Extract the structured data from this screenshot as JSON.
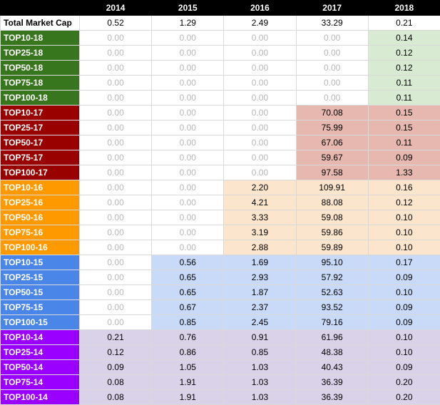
{
  "header": {
    "corner": "",
    "years": [
      "2014",
      "2015",
      "2016",
      "2017",
      "2018"
    ]
  },
  "colors": {
    "group_18": "#38761d",
    "fill_18": "#d9ead3",
    "group_17": "#990000",
    "fill_17": "#e6b8af",
    "group_16": "#ff9900",
    "fill_16": "#fce5cd",
    "group_15": "#4a86e8",
    "fill_15": "#c9daf8",
    "group_14": "#9900ff",
    "fill_14": "#d9d2e9"
  },
  "rows": [
    {
      "label": "Total Market Cap",
      "group": "total",
      "values": [
        "0.52",
        "1.29",
        "2.49",
        "33.29",
        "0.21"
      ]
    },
    {
      "label": "TOP10-18",
      "group": "18",
      "values": [
        "0.00",
        "0.00",
        "0.00",
        "0.00",
        "0.14"
      ]
    },
    {
      "label": "TOP25-18",
      "group": "18",
      "values": [
        "0.00",
        "0.00",
        "0.00",
        "0.00",
        "0.12"
      ]
    },
    {
      "label": "TOP50-18",
      "group": "18",
      "values": [
        "0.00",
        "0.00",
        "0.00",
        "0.00",
        "0.12"
      ]
    },
    {
      "label": "TOP75-18",
      "group": "18",
      "values": [
        "0.00",
        "0.00",
        "0.00",
        "0.00",
        "0.11"
      ]
    },
    {
      "label": "TOP100-18",
      "group": "18",
      "values": [
        "0.00",
        "0.00",
        "0.00",
        "0.00",
        "0.11"
      ]
    },
    {
      "label": "TOP10-17",
      "group": "17",
      "values": [
        "0.00",
        "0.00",
        "0.00",
        "70.08",
        "0.15"
      ]
    },
    {
      "label": "TOP25-17",
      "group": "17",
      "values": [
        "0.00",
        "0.00",
        "0.00",
        "75.99",
        "0.15"
      ]
    },
    {
      "label": "TOP50-17",
      "group": "17",
      "values": [
        "0.00",
        "0.00",
        "0.00",
        "67.06",
        "0.11"
      ]
    },
    {
      "label": "TOP75-17",
      "group": "17",
      "values": [
        "0.00",
        "0.00",
        "0.00",
        "59.67",
        "0.09"
      ]
    },
    {
      "label": "TOP100-17",
      "group": "17",
      "values": [
        "0.00",
        "0.00",
        "0.00",
        "97.58",
        "1.33"
      ]
    },
    {
      "label": "TOP10-16",
      "group": "16",
      "values": [
        "0.00",
        "0.00",
        "2.20",
        "109.91",
        "0.16"
      ]
    },
    {
      "label": "TOP25-16",
      "group": "16",
      "values": [
        "0.00",
        "0.00",
        "4.21",
        "88.08",
        "0.12"
      ]
    },
    {
      "label": "TOP50-16",
      "group": "16",
      "values": [
        "0.00",
        "0.00",
        "3.33",
        "59.08",
        "0.10"
      ]
    },
    {
      "label": "TOP75-16",
      "group": "16",
      "values": [
        "0.00",
        "0.00",
        "3.19",
        "59.86",
        "0.10"
      ]
    },
    {
      "label": "TOP100-16",
      "group": "16",
      "values": [
        "0.00",
        "0.00",
        "2.88",
        "59.89",
        "0.10"
      ]
    },
    {
      "label": "TOP10-15",
      "group": "15",
      "values": [
        "0.00",
        "0.56",
        "1.69",
        "95.10",
        "0.17"
      ]
    },
    {
      "label": "TOP25-15",
      "group": "15",
      "values": [
        "0.00",
        "0.65",
        "2.93",
        "57.92",
        "0.09"
      ]
    },
    {
      "label": "TOP50-15",
      "group": "15",
      "values": [
        "0.00",
        "0.65",
        "1.87",
        "52.63",
        "0.10"
      ]
    },
    {
      "label": "TOP75-15",
      "group": "15",
      "values": [
        "0.00",
        "0.67",
        "2.37",
        "93.52",
        "0.09"
      ]
    },
    {
      "label": "TOP100-15",
      "group": "15",
      "values": [
        "0.00",
        "0.85",
        "2.45",
        "79.16",
        "0.09"
      ]
    },
    {
      "label": "TOP10-14",
      "group": "14",
      "values": [
        "0.21",
        "0.76",
        "0.91",
        "61.96",
        "0.10"
      ]
    },
    {
      "label": "TOP25-14",
      "group": "14",
      "values": [
        "0.12",
        "0.86",
        "0.85",
        "48.38",
        "0.10"
      ]
    },
    {
      "label": "TOP50-14",
      "group": "14",
      "values": [
        "0.09",
        "1.05",
        "1.03",
        "40.43",
        "0.09"
      ]
    },
    {
      "label": "TOP75-14",
      "group": "14",
      "values": [
        "0.08",
        "1.91",
        "1.03",
        "36.39",
        "0.20"
      ]
    },
    {
      "label": "TOP100-14",
      "group": "14",
      "values": [
        "0.08",
        "1.91",
        "1.03",
        "36.39",
        "0.20"
      ]
    }
  ]
}
